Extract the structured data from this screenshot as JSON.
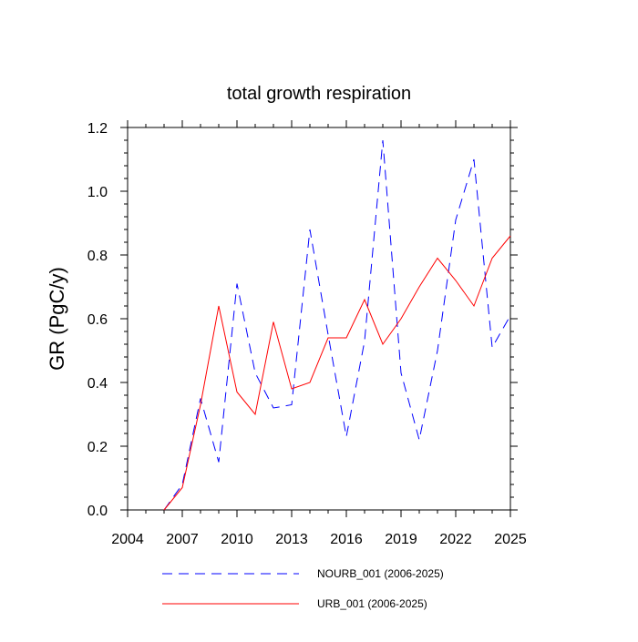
{
  "chart_data": {
    "type": "line",
    "title": "total growth respiration",
    "xlabel": "",
    "ylabel": "GR  (PgC/y)",
    "xlim": [
      2004,
      2025
    ],
    "ylim": [
      0.0,
      1.2
    ],
    "xticks": [
      2004,
      2007,
      2010,
      2013,
      2016,
      2019,
      2022,
      2025
    ],
    "xtick_labels": [
      "2004",
      "2007",
      "2010",
      "2013",
      "2016",
      "2019",
      "2022",
      "2025"
    ],
    "yticks": [
      0.0,
      0.2,
      0.4,
      0.6,
      0.8,
      1.0,
      1.2
    ],
    "ytick_labels": [
      "0.0",
      "0.2",
      "0.4",
      "0.6",
      "0.8",
      "1.0",
      "1.2"
    ],
    "legend_position": "bottom",
    "series": [
      {
        "name": "NOURB_001 (2006-2025)",
        "color": "#0000ff",
        "style": "dashed",
        "x": [
          2006,
          2007,
          2008,
          2009,
          2010,
          2011,
          2012,
          2013,
          2014,
          2015,
          2016,
          2017,
          2018,
          2019,
          2020,
          2021,
          2022,
          2023,
          2024,
          2025
        ],
        "values": [
          0.0,
          0.08,
          0.35,
          0.15,
          0.71,
          0.43,
          0.32,
          0.33,
          0.88,
          0.55,
          0.23,
          0.53,
          1.16,
          0.43,
          0.22,
          0.5,
          0.91,
          1.1,
          0.51,
          0.61
        ]
      },
      {
        "name": "URB_001 (2006-2025)",
        "color": "#ff0000",
        "style": "solid",
        "x": [
          2006,
          2007,
          2008,
          2009,
          2010,
          2011,
          2012,
          2013,
          2014,
          2015,
          2016,
          2017,
          2018,
          2019,
          2020,
          2021,
          2022,
          2023,
          2024,
          2025
        ],
        "values": [
          0.0,
          0.07,
          0.33,
          0.64,
          0.37,
          0.3,
          0.59,
          0.38,
          0.4,
          0.54,
          0.54,
          0.66,
          0.52,
          0.6,
          0.7,
          0.79,
          0.72,
          0.64,
          0.79,
          0.86
        ]
      }
    ]
  }
}
